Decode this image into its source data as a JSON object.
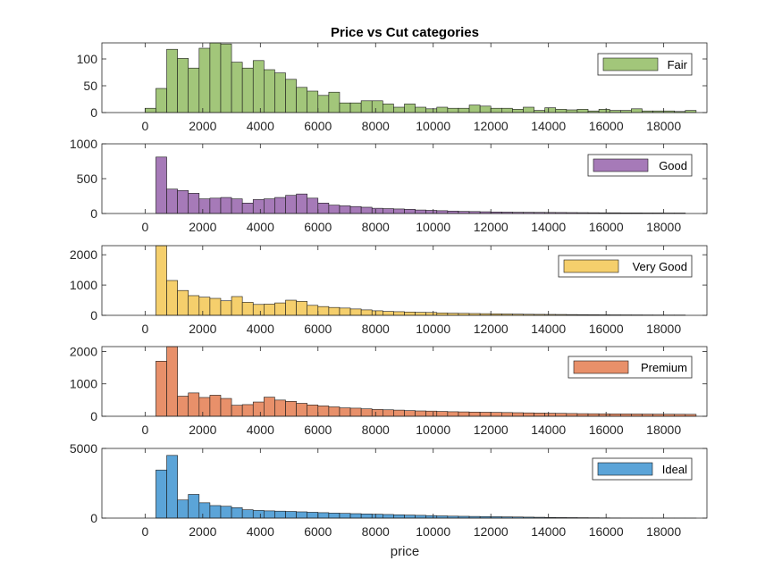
{
  "figure": {
    "title": "Price vs Cut categories",
    "xlabel": "price"
  },
  "chart_data": [
    {
      "type": "bar",
      "series_name": "Fair",
      "color": "#a2c67a",
      "xlim": [
        -1500,
        19500
      ],
      "ylim": [
        0,
        130
      ],
      "xticks": [
        0,
        2000,
        4000,
        6000,
        8000,
        10000,
        12000,
        14000,
        16000,
        18000
      ],
      "yticks": [
        0,
        50,
        100
      ],
      "bin_start": 0,
      "bin_width": 375,
      "values": [
        8,
        45,
        118,
        101,
        83,
        120,
        130,
        128,
        94,
        83,
        97,
        80,
        74,
        62,
        47,
        40,
        32,
        38,
        18,
        18,
        22,
        22,
        16,
        10,
        16,
        10,
        7,
        10,
        8,
        8,
        14,
        12,
        8,
        8,
        6,
        10,
        4,
        9,
        6,
        5,
        6,
        3,
        6,
        4,
        4,
        7,
        3,
        3,
        3,
        2,
        4
      ]
    },
    {
      "type": "bar",
      "series_name": "Good",
      "color": "#a67ab8",
      "xlim": [
        -1500,
        19500
      ],
      "ylim": [
        0,
        1000
      ],
      "xticks": [
        0,
        2000,
        4000,
        6000,
        8000,
        10000,
        12000,
        14000,
        16000,
        18000
      ],
      "yticks": [
        0,
        500,
        1000
      ],
      "bin_start": 375,
      "bin_width": 375,
      "values": [
        810,
        350,
        330,
        290,
        210,
        220,
        230,
        210,
        150,
        200,
        210,
        230,
        260,
        280,
        220,
        150,
        120,
        110,
        100,
        90,
        75,
        70,
        65,
        60,
        50,
        45,
        40,
        35,
        30,
        28,
        25,
        22,
        20,
        18,
        17,
        16,
        15,
        14,
        13,
        12,
        11,
        10,
        10,
        9,
        9,
        8,
        8,
        7,
        7
      ]
    },
    {
      "type": "bar",
      "series_name": "Very Good",
      "color": "#f5cf6c",
      "xlim": [
        -1500,
        19500
      ],
      "ylim": [
        0,
        2300
      ],
      "xticks": [
        0,
        2000,
        4000,
        6000,
        8000,
        10000,
        12000,
        14000,
        16000,
        18000
      ],
      "yticks": [
        0,
        1000,
        2000
      ],
      "bin_start": 375,
      "bin_width": 375,
      "values": [
        2300,
        1150,
        820,
        650,
        600,
        560,
        480,
        620,
        430,
        360,
        370,
        410,
        500,
        460,
        330,
        290,
        260,
        240,
        210,
        180,
        150,
        130,
        120,
        110,
        100,
        95,
        80,
        70,
        65,
        60,
        55,
        50,
        45,
        40,
        35,
        32,
        30,
        28,
        25,
        22,
        20,
        18,
        16,
        15,
        14,
        12,
        11,
        10,
        10
      ]
    },
    {
      "type": "bar",
      "series_name": "Premium",
      "color": "#e8906a",
      "xlim": [
        -1500,
        19500
      ],
      "ylim": [
        0,
        2150
      ],
      "xticks": [
        0,
        2000,
        4000,
        6000,
        8000,
        10000,
        12000,
        14000,
        16000,
        18000
      ],
      "yticks": [
        0,
        1000,
        2000
      ],
      "bin_start": 375,
      "bin_width": 375,
      "values": [
        1700,
        2150,
        620,
        720,
        580,
        650,
        550,
        340,
        360,
        440,
        590,
        500,
        460,
        400,
        350,
        320,
        290,
        260,
        250,
        230,
        210,
        200,
        190,
        175,
        165,
        160,
        150,
        140,
        135,
        130,
        125,
        120,
        115,
        110,
        105,
        100,
        95,
        90,
        85,
        80,
        78,
        76,
        74,
        72,
        70,
        68,
        66,
        64,
        62,
        60
      ]
    },
    {
      "type": "bar",
      "series_name": "Ideal",
      "color": "#5ba4d8",
      "xlim": [
        -1500,
        19500
      ],
      "ylim": [
        0,
        5000
      ],
      "xticks": [
        0,
        2000,
        4000,
        6000,
        8000,
        10000,
        12000,
        14000,
        16000,
        18000
      ],
      "yticks": [
        0,
        5000
      ],
      "bin_start": 375,
      "bin_width": 375,
      "values": [
        3450,
        4500,
        1300,
        1700,
        1100,
        900,
        850,
        750,
        600,
        550,
        520,
        500,
        480,
        450,
        420,
        390,
        360,
        340,
        320,
        300,
        280,
        260,
        240,
        220,
        200,
        180,
        160,
        140,
        130,
        120,
        110,
        100,
        90,
        80,
        70,
        60,
        50,
        40,
        35,
        30,
        25,
        20,
        15,
        12,
        10,
        8,
        6,
        5,
        4,
        3
      ]
    }
  ]
}
